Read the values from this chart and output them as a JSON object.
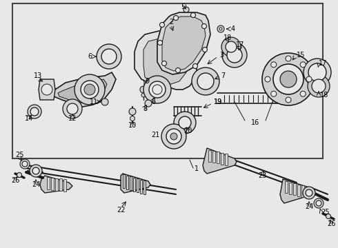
{
  "fig_width": 4.9,
  "fig_height": 3.6,
  "dpi": 100,
  "bg_color": "#e8e8e8",
  "box_bg": "#e8e8e8",
  "box_border": "#444444",
  "lc": "#1a1a1a",
  "label_fs": 7.0
}
